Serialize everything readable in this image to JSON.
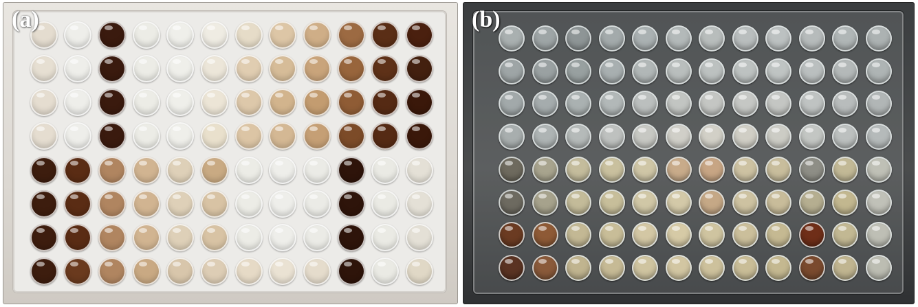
{
  "panels": [
    {
      "label": "(a)",
      "well_colors": [
        [
          "#e4dccf",
          "#eeeeea",
          "#3a1a0e",
          "#ecece6",
          "#efefea",
          "#efece3",
          "#e6dcc8",
          "#ddc6a6",
          "#cfae87",
          "#9c6a42",
          "#5a2e16",
          "#4a200f"
        ],
        [
          "#e6dfd2",
          "#eeeeea",
          "#3a1a0e",
          "#ecece6",
          "#efefea",
          "#ece6d9",
          "#e0cdb1",
          "#d6bc98",
          "#c9a47b",
          "#98653c",
          "#5e3118",
          "#43200f"
        ],
        [
          "#e5ddd0",
          "#eeeeea",
          "#3a1a0e",
          "#ecece6",
          "#efefea",
          "#ece5d6",
          "#ddc8aa",
          "#d2b48d",
          "#c39c70",
          "#8f5c35",
          "#552a14",
          "#3a180a"
        ],
        [
          "#e5ddd0",
          "#eeeeea",
          "#3a1a0e",
          "#ecece6",
          "#efefea",
          "#e9e0cc",
          "#dcc5a5",
          "#d4b894",
          "#c59f75",
          "#7c4b28",
          "#552a14",
          "#3a180a"
        ],
        [
          "#3d1d0e",
          "#5a2c14",
          "#b08560",
          "#d1b491",
          "#ded0b8",
          "#c9aa83",
          "#ecece6",
          "#eeeeea",
          "#ebebe6",
          "#2e140a",
          "#eaeae4",
          "#e4e0d6"
        ],
        [
          "#3d1d0e",
          "#5a2c14",
          "#b08560",
          "#d1b491",
          "#ded0b8",
          "#d8c3a4",
          "#ecece6",
          "#eeeeea",
          "#ebebe6",
          "#2e140a",
          "#eaeae4",
          "#e4e0d6"
        ],
        [
          "#3d1d0e",
          "#5a2c14",
          "#b08560",
          "#d1b491",
          "#ded0b8",
          "#d8c3a4",
          "#ecece6",
          "#eeeeea",
          "#ebebe6",
          "#2e140a",
          "#eaeae4",
          "#e4e0d6"
        ],
        [
          "#3d1d0e",
          "#6a3a1e",
          "#b08560",
          "#c9a983",
          "#d8c6ab",
          "#ddcdb5",
          "#e6dac6",
          "#eae2d3",
          "#e5dccc",
          "#2e140a",
          "#eaeae4",
          "#e0d8c6"
        ]
      ]
    },
    {
      "label": "(b)",
      "well_colors": [
        [
          "#a9b0b0",
          "#9ea5a6",
          "#8e9596",
          "#a3aaab",
          "#aab1b2",
          "#b3b9b9",
          "#b8bdbc",
          "#b9bebe",
          "#bcc1c1",
          "#b6bbbb",
          "#b0b6b6",
          "#acb2b2"
        ],
        [
          "#9ea5a6",
          "#9aa1a2",
          "#98a0a0",
          "#a8afb0",
          "#b1b7b7",
          "#b9bebd",
          "#bcc1c0",
          "#bdc2c1",
          "#bfc4c3",
          "#babfbf",
          "#b4b9b9",
          "#aeb4b4"
        ],
        [
          "#a2a9aa",
          "#a5acad",
          "#aab1b1",
          "#b2b8b8",
          "#bbbfbe",
          "#c2c5c2",
          "#c4c6c3",
          "#c5c7c4",
          "#c4c6c3",
          "#bfc3c2",
          "#b8bcbc",
          "#b1b6b6"
        ],
        [
          "#a8aeae",
          "#aeb4b4",
          "#b5bab9",
          "#bec1bf",
          "#c7c8c3",
          "#d0cfc8",
          "#d2d0c7",
          "#d0cec5",
          "#ccccc5",
          "#c3c6c3",
          "#bcc0bf",
          "#b5baba"
        ],
        [
          "#6e6a5e",
          "#a8a48e",
          "#c4bc9c",
          "#c9c09e",
          "#cfc6a6",
          "#c8ab8a",
          "#c7a584",
          "#cdc2a2",
          "#c8bd9c",
          "#8e8e86",
          "#c2b996",
          "#bfc0b6"
        ],
        [
          "#6d6a60",
          "#a6a28c",
          "#c3bb99",
          "#c7be9a",
          "#d0c7a6",
          "#d3c9a8",
          "#c5a886",
          "#cdc2a1",
          "#c8bc9a",
          "#b5ae90",
          "#c2b78f",
          "#c0c1b8"
        ],
        [
          "#6b3b22",
          "#8e5a36",
          "#c3b894",
          "#c8bd98",
          "#d3c7a4",
          "#d6caa6",
          "#cfc4a0",
          "#cbbf9b",
          "#c5b992",
          "#6f2e18",
          "#c2b893",
          "#bebfb5"
        ],
        [
          "#5a3322",
          "#8a5a3a",
          "#c0b48f",
          "#c6ba95",
          "#cfc4a0",
          "#d2c6a2",
          "#cdc19c",
          "#c9bd97",
          "#c4b890",
          "#7a4a2e",
          "#c0b590",
          "#bcbdb2"
        ]
      ]
    }
  ]
}
